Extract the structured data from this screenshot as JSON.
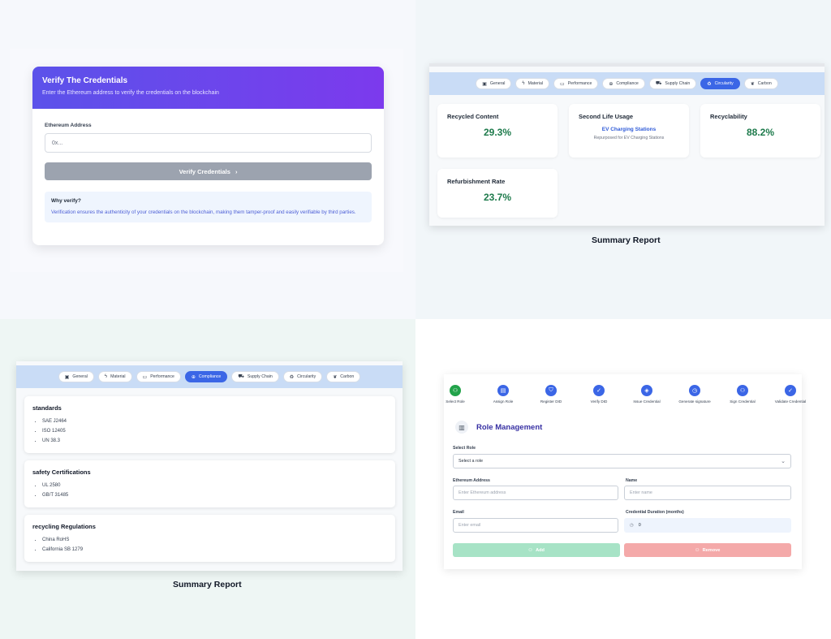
{
  "verify": {
    "title": "Verify The Credentials",
    "subtitle": "Enter the Ethereum address to verify the credentials on the blockchain",
    "address_label": "Ethereum Address",
    "address_placeholder": "0x...",
    "button_label": "Verify Credentials",
    "why_title": "Why verify?",
    "why_text": "Verification ensures the authenticity of your credentials on the blockchain, making them tamper-proof and easily verifiable by third parties."
  },
  "tabs": [
    {
      "label": "General",
      "icon": "clipboard-icon"
    },
    {
      "label": "Material",
      "icon": "bolt-icon"
    },
    {
      "label": "Performance",
      "icon": "battery-icon"
    },
    {
      "label": "Compliance",
      "icon": "globe-icon"
    },
    {
      "label": "Supply Chain",
      "icon": "truck-icon"
    },
    {
      "label": "Circularity",
      "icon": "recycle-icon"
    },
    {
      "label": "Carbon",
      "icon": "leaf-icon"
    }
  ],
  "circularity": {
    "active_tab": "Circularity",
    "recycled_content": {
      "title": "Recycled Content",
      "value": "29.3%"
    },
    "second_life": {
      "title": "Second Life Usage",
      "value": "EV Charging Stations",
      "note": "Repurposed for EV Charging Stations"
    },
    "recyclability": {
      "title": "Recyclability",
      "value": "88.2%"
    },
    "refurbishment": {
      "title": "Refurbishment Rate",
      "value": "23.7%"
    },
    "caption": "Summary Report"
  },
  "compliance": {
    "active_tab": "Compliance",
    "sections": [
      {
        "title": "standards",
        "items": [
          "SAE J2464",
          "ISO 12405",
          "UN 38.3"
        ]
      },
      {
        "title": "safety Certifications",
        "items": [
          "UL 2580",
          "GB/T 31485"
        ]
      },
      {
        "title": "recycling Regulations",
        "items": [
          "China RoHS",
          "California SB 1279"
        ]
      }
    ],
    "caption": "Summary Report"
  },
  "role": {
    "steps": [
      {
        "label": "Select Role",
        "icon": "user-plus-icon",
        "color": "#22a34a"
      },
      {
        "label": "Assign Role",
        "icon": "id-card-icon",
        "color": "#3b66e6"
      },
      {
        "label": "Register DID",
        "icon": "shield-icon",
        "color": "#3b66e6"
      },
      {
        "label": "Verify DID",
        "icon": "check-icon",
        "color": "#3b66e6"
      },
      {
        "label": "Issue Credential",
        "icon": "tag-icon",
        "color": "#3b66e6"
      },
      {
        "label": "Generate signature",
        "icon": "clock-icon",
        "color": "#3b66e6"
      },
      {
        "label": "Sign Credential",
        "icon": "user-plus-icon",
        "color": "#3b66e6"
      },
      {
        "label": "Validate Credential",
        "icon": "check-icon",
        "color": "#3b66e6"
      }
    ],
    "title": "Role Management",
    "select_label": "Select Role",
    "select_value": "Select a role",
    "eth_label": "Ethereum Address",
    "eth_placeholder": "Enter Ethereum address",
    "name_label": "Name",
    "name_placeholder": "Enter name",
    "email_label": "Email",
    "email_placeholder": "Enter email",
    "duration_label": "Credential Duration (months)",
    "duration_value": "0",
    "add_label": "Add",
    "remove_label": "Remove",
    "add_color": "#a7e3c6",
    "remove_color": "#f4a9a9"
  }
}
